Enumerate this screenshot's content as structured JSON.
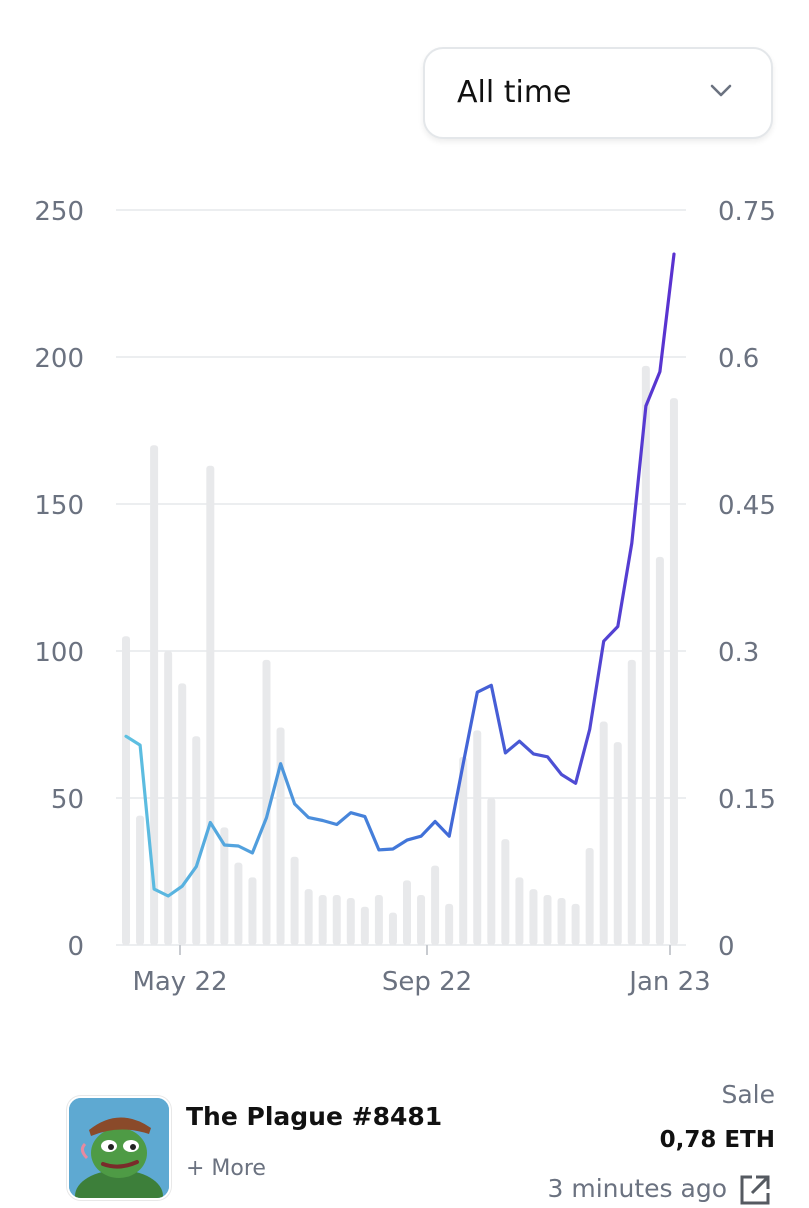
{
  "range_selector": {
    "selected": "All time",
    "icon": "chevron-down-icon"
  },
  "chart_data": {
    "type": "bar+line",
    "title": "",
    "xlabel": "",
    "ylabel_left": "",
    "ylabel_right": "",
    "x_ticks": [
      "May 22",
      "Sep 22",
      "Jan 23"
    ],
    "y_left_ticks": [
      "0",
      "50",
      "100",
      "150",
      "200",
      "250"
    ],
    "y_right_ticks": [
      "0",
      "0.15",
      "0.3",
      "0.45",
      "0.6",
      "0.75"
    ],
    "y_left_range": [
      0,
      250
    ],
    "y_right_range": [
      0,
      0.75
    ],
    "grid": true,
    "volume_bars": [
      105,
      44,
      170,
      100,
      89,
      71,
      163,
      40,
      28,
      23,
      97,
      74,
      30,
      19,
      17,
      17,
      16,
      13,
      17,
      11,
      22,
      17,
      27,
      14,
      64,
      73,
      50,
      36,
      23,
      19,
      17,
      16,
      14,
      33,
      76,
      69,
      97,
      197,
      132,
      186
    ],
    "price_line": [
      0.213,
      0.204,
      0.057,
      0.05,
      0.06,
      0.08,
      0.125,
      0.102,
      0.101,
      0.094,
      0.13,
      0.185,
      0.144,
      0.13,
      0.127,
      0.123,
      0.135,
      0.131,
      0.097,
      0.098,
      0.107,
      0.111,
      0.126,
      0.111,
      0.185,
      0.258,
      0.265,
      0.196,
      0.208,
      0.195,
      0.192,
      0.174,
      0.165,
      0.22,
      0.31,
      0.325,
      0.41,
      0.55,
      0.585,
      0.705
    ],
    "colors": {
      "bars": "#e8e9eb",
      "grid": "#e6e8eb",
      "line_start": "#5ec1e1",
      "line_mid": "#3f6fd8",
      "line_end": "#5a32d0",
      "tick_text": "#6b7280"
    }
  },
  "item": {
    "name": "The Plague #8481",
    "more_link": "+ More",
    "sale_type": "Sale",
    "price": "0,78 ETH",
    "time": "3 minutes ago",
    "link_icon": "external-link-icon"
  }
}
